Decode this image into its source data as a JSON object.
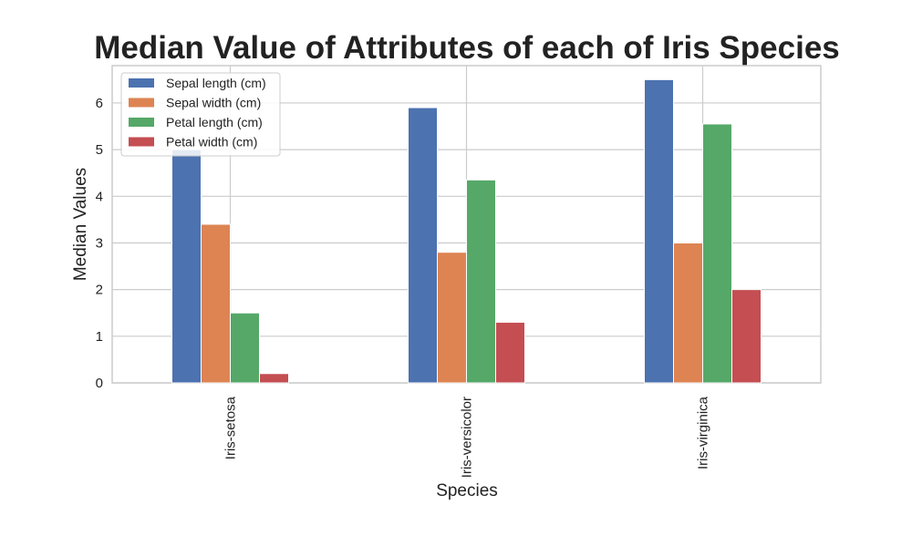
{
  "chart_data": {
    "type": "bar",
    "title": "Median Value of Attributes of each of Iris Species",
    "xlabel": "Species",
    "ylabel": "Median Values",
    "categories": [
      "Iris-setosa",
      "Iris-versicolor",
      "Iris-virginica"
    ],
    "series": [
      {
        "name": "Sepal length (cm)",
        "color": "#4c72b0",
        "values": [
          5.0,
          5.9,
          6.5
        ]
      },
      {
        "name": "Sepal width (cm)",
        "color": "#dd8452",
        "values": [
          3.4,
          2.8,
          3.0
        ]
      },
      {
        "name": "Petal length (cm)",
        "color": "#55a868",
        "values": [
          1.5,
          4.35,
          5.55
        ]
      },
      {
        "name": "Petal width (cm)",
        "color": "#c44e52",
        "values": [
          0.2,
          1.3,
          2.0
        ]
      }
    ],
    "ylim": [
      0,
      6.8
    ],
    "yticks": [
      0,
      1,
      2,
      3,
      4,
      5,
      6
    ],
    "grid": true,
    "legend_position": "top-left",
    "x_tick_rotation": "vertical"
  }
}
